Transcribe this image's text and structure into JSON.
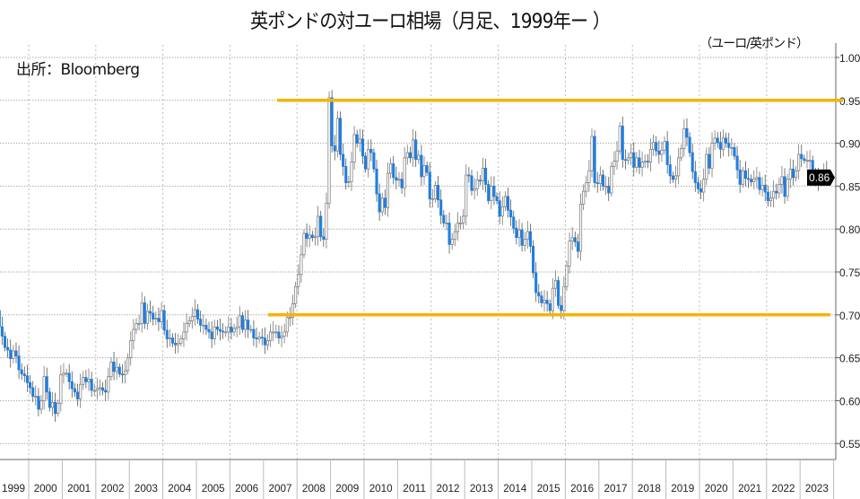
{
  "chart_data": {
    "type": "candlestick",
    "title": "英ポンドの対ユーロ相場（月足、1999年ー ）",
    "unit_label": "（ユーロ/英ポンド）",
    "source": "出所：Bloomberg",
    "ylim": [
      0.55,
      1.0
    ],
    "yticks": [
      "0.55",
      "0.60",
      "0.65",
      "0.70",
      "0.75",
      "0.80",
      "0.85",
      "0.90",
      "0.95",
      "1.00"
    ],
    "years": [
      "1999",
      "2000",
      "2001",
      "2002",
      "2003",
      "2004",
      "2005",
      "2006",
      "2007",
      "2008",
      "2009",
      "2010",
      "2011",
      "2012",
      "2013",
      "2014",
      "2015",
      "2016",
      "2017",
      "2018",
      "2019",
      "2020",
      "2021",
      "2022",
      "2023"
    ],
    "monthly_close": [
      [
        0.705,
        0.686,
        0.675,
        0.662,
        0.659,
        0.649,
        0.658,
        0.652,
        0.636,
        0.631,
        0.629,
        0.621
      ],
      [
        0.615,
        0.605,
        0.605,
        0.59,
        0.6,
        0.628,
        0.61,
        0.592,
        0.598,
        0.585,
        0.597,
        0.63
      ],
      [
        0.632,
        0.632,
        0.622,
        0.614,
        0.61,
        0.602,
        0.619,
        0.627,
        0.622,
        0.625,
        0.612,
        0.612
      ],
      [
        0.614,
        0.615,
        0.612,
        0.61,
        0.628,
        0.645,
        0.634,
        0.639,
        0.631,
        0.63,
        0.635,
        0.65
      ],
      [
        0.67,
        0.683,
        0.69,
        0.69,
        0.714,
        0.69,
        0.704,
        0.702,
        0.695,
        0.696,
        0.692,
        0.705
      ],
      [
        0.682,
        0.672,
        0.673,
        0.667,
        0.665,
        0.667,
        0.672,
        0.68,
        0.69,
        0.693,
        0.698,
        0.706
      ],
      [
        0.695,
        0.688,
        0.688,
        0.683,
        0.68,
        0.672,
        0.686,
        0.683,
        0.681,
        0.68,
        0.68,
        0.686
      ],
      [
        0.68,
        0.684,
        0.686,
        0.699,
        0.683,
        0.694,
        0.683,
        0.683,
        0.673,
        0.672,
        0.674,
        0.673
      ],
      [
        0.665,
        0.67,
        0.68,
        0.68,
        0.68,
        0.673,
        0.675,
        0.68,
        0.697,
        0.697,
        0.713,
        0.733
      ],
      [
        0.747,
        0.77,
        0.795,
        0.789,
        0.793,
        0.79,
        0.791,
        0.815,
        0.791,
        0.788,
        0.83,
        0.953
      ],
      [
        0.897,
        0.891,
        0.929,
        0.887,
        0.873,
        0.854,
        0.855,
        0.878,
        0.91,
        0.9,
        0.905,
        0.885
      ],
      [
        0.87,
        0.893,
        0.889,
        0.87,
        0.841,
        0.82,
        0.836,
        0.825,
        0.865,
        0.876,
        0.86,
        0.857
      ],
      [
        0.858,
        0.848,
        0.883,
        0.889,
        0.883,
        0.904,
        0.881,
        0.886,
        0.861,
        0.874,
        0.866,
        0.835
      ],
      [
        0.835,
        0.851,
        0.834,
        0.816,
        0.807,
        0.807,
        0.782,
        0.788,
        0.797,
        0.807,
        0.807,
        0.815
      ],
      [
        0.863,
        0.862,
        0.845,
        0.847,
        0.857,
        0.856,
        0.871,
        0.852,
        0.833,
        0.85,
        0.838,
        0.833
      ],
      [
        0.815,
        0.826,
        0.838,
        0.822,
        0.814,
        0.801,
        0.79,
        0.799,
        0.781,
        0.788,
        0.797,
        0.78
      ],
      [
        0.749,
        0.726,
        0.722,
        0.714,
        0.717,
        0.713,
        0.705,
        0.731,
        0.74,
        0.711,
        0.705,
        0.733
      ],
      [
        0.757,
        0.786,
        0.79,
        0.785,
        0.774,
        0.829,
        0.844,
        0.854,
        0.868,
        0.908,
        0.854,
        0.853
      ],
      [
        0.863,
        0.85,
        0.85,
        0.842,
        0.873,
        0.879,
        0.891,
        0.92,
        0.881,
        0.88,
        0.883,
        0.889
      ],
      [
        0.872,
        0.883,
        0.872,
        0.878,
        0.879,
        0.878,
        0.893,
        0.901,
        0.891,
        0.887,
        0.892,
        0.902
      ],
      [
        0.875,
        0.862,
        0.858,
        0.862,
        0.883,
        0.894,
        0.917,
        0.907,
        0.889,
        0.867,
        0.854,
        0.847
      ],
      [
        0.843,
        0.858,
        0.887,
        0.871,
        0.9,
        0.906,
        0.901,
        0.893,
        0.906,
        0.9,
        0.895,
        0.895
      ],
      [
        0.885,
        0.869,
        0.852,
        0.868,
        0.859,
        0.858,
        0.855,
        0.858,
        0.86,
        0.846,
        0.851,
        0.843
      ],
      [
        0.833,
        0.836,
        0.844,
        0.842,
        0.852,
        0.861,
        0.838,
        0.858,
        0.87,
        0.86,
        0.868,
        0.887
      ],
      [
        0.882,
        0.88,
        0.88,
        0.88,
        0.861,
        0.859,
        0.855,
        0.86,
        0.867,
        0.862
      ]
    ],
    "reference_lines": [
      0.95,
      0.7
    ],
    "last_value_label": "0.86",
    "colors": {
      "down": "#1e7fe0",
      "up": "#888888",
      "reference": "#f5b400",
      "last_badge": "#000000"
    }
  }
}
